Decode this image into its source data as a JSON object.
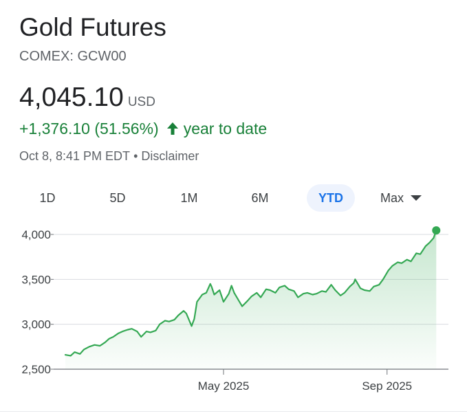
{
  "header": {
    "title": "Gold Futures",
    "ticker": "COMEX: GCW00",
    "price": "4,045.10",
    "currency": "USD",
    "change": "+1,376.10 (51.56%)",
    "change_period": "year to date",
    "timestamp": "Oct 8, 8:41 PM EDT",
    "separator": "•",
    "disclaimer": "Disclaimer"
  },
  "colors": {
    "positive": "#188038",
    "line": "#34a853",
    "active_tab": "#1a73e8"
  },
  "ranges": {
    "items": [
      {
        "label": "1D",
        "active": false
      },
      {
        "label": "5D",
        "active": false
      },
      {
        "label": "1M",
        "active": false
      },
      {
        "label": "6M",
        "active": false
      },
      {
        "label": "YTD",
        "active": true
      },
      {
        "label": "Max",
        "active": false,
        "has_dropdown": true
      }
    ]
  },
  "chart_data": {
    "type": "area",
    "title": "",
    "xlabel": "",
    "ylabel": "",
    "ylim": [
      2500,
      4100
    ],
    "yticks": [
      {
        "value": 2500,
        "label": "2,500"
      },
      {
        "value": 3000,
        "label": "3,000"
      },
      {
        "value": 3500,
        "label": "3,500"
      },
      {
        "value": 4000,
        "label": "4,000"
      }
    ],
    "xlim": [
      "2025-01-02",
      "2025-10-12"
    ],
    "xticks": [
      {
        "value": "2025-05-01",
        "label": "May 2025"
      },
      {
        "value": "2025-09-01",
        "label": "Sep 2025"
      }
    ],
    "grid": "horizontal",
    "legend": "none",
    "series": [
      {
        "name": "",
        "points": [
          [
            "2025-01-02",
            2660
          ],
          [
            "2025-01-06",
            2650
          ],
          [
            "2025-01-09",
            2690
          ],
          [
            "2025-01-13",
            2670
          ],
          [
            "2025-01-16",
            2720
          ],
          [
            "2025-01-20",
            2750
          ],
          [
            "2025-01-24",
            2770
          ],
          [
            "2025-01-28",
            2760
          ],
          [
            "2025-02-01",
            2800
          ],
          [
            "2025-02-04",
            2840
          ],
          [
            "2025-02-07",
            2860
          ],
          [
            "2025-02-11",
            2900
          ],
          [
            "2025-02-14",
            2920
          ],
          [
            "2025-02-18",
            2940
          ],
          [
            "2025-02-21",
            2950
          ],
          [
            "2025-02-25",
            2920
          ],
          [
            "2025-02-28",
            2860
          ],
          [
            "2025-03-04",
            2920
          ],
          [
            "2025-03-07",
            2910
          ],
          [
            "2025-03-11",
            2930
          ],
          [
            "2025-03-14",
            3000
          ],
          [
            "2025-03-18",
            3040
          ],
          [
            "2025-03-21",
            3030
          ],
          [
            "2025-03-25",
            3050
          ],
          [
            "2025-03-28",
            3100
          ],
          [
            "2025-04-01",
            3150
          ],
          [
            "2025-04-03",
            3120
          ],
          [
            "2025-04-07",
            2980
          ],
          [
            "2025-04-09",
            3060
          ],
          [
            "2025-04-11",
            3250
          ],
          [
            "2025-04-15",
            3330
          ],
          [
            "2025-04-18",
            3350
          ],
          [
            "2025-04-21",
            3450
          ],
          [
            "2025-04-22",
            3420
          ],
          [
            "2025-04-24",
            3330
          ],
          [
            "2025-04-28",
            3380
          ],
          [
            "2025-05-01",
            3250
          ],
          [
            "2025-05-05",
            3340
          ],
          [
            "2025-05-07",
            3430
          ],
          [
            "2025-05-09",
            3350
          ],
          [
            "2025-05-13",
            3250
          ],
          [
            "2025-05-15",
            3200
          ],
          [
            "2025-05-19",
            3260
          ],
          [
            "2025-05-22",
            3310
          ],
          [
            "2025-05-26",
            3350
          ],
          [
            "2025-05-29",
            3300
          ],
          [
            "2025-06-02",
            3390
          ],
          [
            "2025-06-05",
            3380
          ],
          [
            "2025-06-09",
            3350
          ],
          [
            "2025-06-12",
            3410
          ],
          [
            "2025-06-16",
            3430
          ],
          [
            "2025-06-19",
            3390
          ],
          [
            "2025-06-23",
            3370
          ],
          [
            "2025-06-26",
            3300
          ],
          [
            "2025-06-30",
            3340
          ],
          [
            "2025-07-03",
            3350
          ],
          [
            "2025-07-07",
            3330
          ],
          [
            "2025-07-10",
            3340
          ],
          [
            "2025-07-14",
            3370
          ],
          [
            "2025-07-17",
            3360
          ],
          [
            "2025-07-21",
            3440
          ],
          [
            "2025-07-24",
            3380
          ],
          [
            "2025-07-28",
            3320
          ],
          [
            "2025-07-31",
            3350
          ],
          [
            "2025-08-04",
            3420
          ],
          [
            "2025-08-07",
            3460
          ],
          [
            "2025-08-08",
            3500
          ],
          [
            "2025-08-12",
            3400
          ],
          [
            "2025-08-15",
            3380
          ],
          [
            "2025-08-19",
            3370
          ],
          [
            "2025-08-22",
            3420
          ],
          [
            "2025-08-26",
            3440
          ],
          [
            "2025-08-29",
            3500
          ],
          [
            "2025-09-02",
            3600
          ],
          [
            "2025-09-05",
            3650
          ],
          [
            "2025-09-09",
            3690
          ],
          [
            "2025-09-12",
            3680
          ],
          [
            "2025-09-16",
            3720
          ],
          [
            "2025-09-19",
            3700
          ],
          [
            "2025-09-23",
            3790
          ],
          [
            "2025-09-26",
            3780
          ],
          [
            "2025-09-30",
            3870
          ],
          [
            "2025-10-03",
            3910
          ],
          [
            "2025-10-06",
            3960
          ],
          [
            "2025-10-08",
            4045.1
          ]
        ]
      }
    ]
  }
}
